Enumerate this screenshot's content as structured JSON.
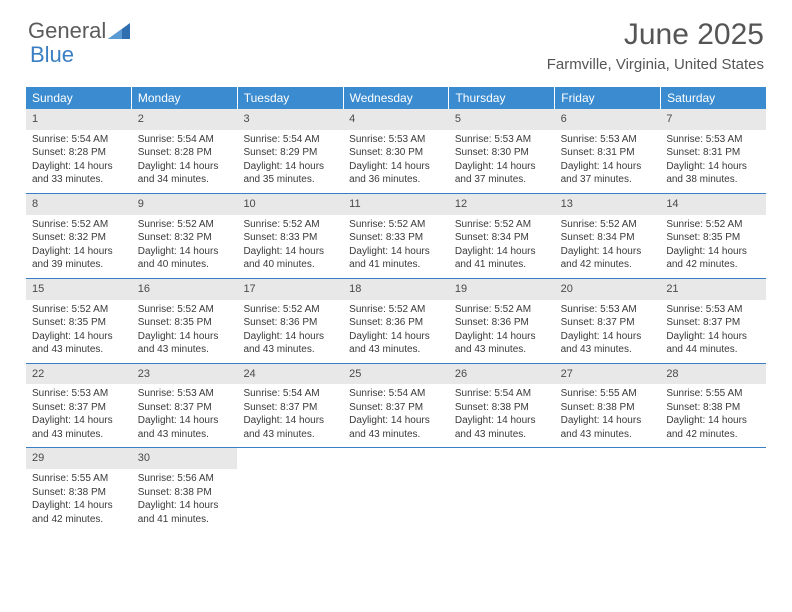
{
  "logo": {
    "text1": "General",
    "text2": "Blue"
  },
  "title": "June 2025",
  "location": "Farmville, Virginia, United States",
  "colors": {
    "header_bar": "#3a8bcf",
    "accent": "#3a7fc4",
    "daynum_bg": "#e8e8e8",
    "text": "#333333"
  },
  "weekdays": [
    "Sunday",
    "Monday",
    "Tuesday",
    "Wednesday",
    "Thursday",
    "Friday",
    "Saturday"
  ],
  "weeks": [
    [
      {
        "n": "1",
        "sr": "5:54 AM",
        "ss": "8:28 PM",
        "dl1": "14 hours",
        "dl2": "and 33 minutes."
      },
      {
        "n": "2",
        "sr": "5:54 AM",
        "ss": "8:28 PM",
        "dl1": "14 hours",
        "dl2": "and 34 minutes."
      },
      {
        "n": "3",
        "sr": "5:54 AM",
        "ss": "8:29 PM",
        "dl1": "14 hours",
        "dl2": "and 35 minutes."
      },
      {
        "n": "4",
        "sr": "5:53 AM",
        "ss": "8:30 PM",
        "dl1": "14 hours",
        "dl2": "and 36 minutes."
      },
      {
        "n": "5",
        "sr": "5:53 AM",
        "ss": "8:30 PM",
        "dl1": "14 hours",
        "dl2": "and 37 minutes."
      },
      {
        "n": "6",
        "sr": "5:53 AM",
        "ss": "8:31 PM",
        "dl1": "14 hours",
        "dl2": "and 37 minutes."
      },
      {
        "n": "7",
        "sr": "5:53 AM",
        "ss": "8:31 PM",
        "dl1": "14 hours",
        "dl2": "and 38 minutes."
      }
    ],
    [
      {
        "n": "8",
        "sr": "5:52 AM",
        "ss": "8:32 PM",
        "dl1": "14 hours",
        "dl2": "and 39 minutes."
      },
      {
        "n": "9",
        "sr": "5:52 AM",
        "ss": "8:32 PM",
        "dl1": "14 hours",
        "dl2": "and 40 minutes."
      },
      {
        "n": "10",
        "sr": "5:52 AM",
        "ss": "8:33 PM",
        "dl1": "14 hours",
        "dl2": "and 40 minutes."
      },
      {
        "n": "11",
        "sr": "5:52 AM",
        "ss": "8:33 PM",
        "dl1": "14 hours",
        "dl2": "and 41 minutes."
      },
      {
        "n": "12",
        "sr": "5:52 AM",
        "ss": "8:34 PM",
        "dl1": "14 hours",
        "dl2": "and 41 minutes."
      },
      {
        "n": "13",
        "sr": "5:52 AM",
        "ss": "8:34 PM",
        "dl1": "14 hours",
        "dl2": "and 42 minutes."
      },
      {
        "n": "14",
        "sr": "5:52 AM",
        "ss": "8:35 PM",
        "dl1": "14 hours",
        "dl2": "and 42 minutes."
      }
    ],
    [
      {
        "n": "15",
        "sr": "5:52 AM",
        "ss": "8:35 PM",
        "dl1": "14 hours",
        "dl2": "and 43 minutes."
      },
      {
        "n": "16",
        "sr": "5:52 AM",
        "ss": "8:35 PM",
        "dl1": "14 hours",
        "dl2": "and 43 minutes."
      },
      {
        "n": "17",
        "sr": "5:52 AM",
        "ss": "8:36 PM",
        "dl1": "14 hours",
        "dl2": "and 43 minutes."
      },
      {
        "n": "18",
        "sr": "5:52 AM",
        "ss": "8:36 PM",
        "dl1": "14 hours",
        "dl2": "and 43 minutes."
      },
      {
        "n": "19",
        "sr": "5:52 AM",
        "ss": "8:36 PM",
        "dl1": "14 hours",
        "dl2": "and 43 minutes."
      },
      {
        "n": "20",
        "sr": "5:53 AM",
        "ss": "8:37 PM",
        "dl1": "14 hours",
        "dl2": "and 43 minutes."
      },
      {
        "n": "21",
        "sr": "5:53 AM",
        "ss": "8:37 PM",
        "dl1": "14 hours",
        "dl2": "and 44 minutes."
      }
    ],
    [
      {
        "n": "22",
        "sr": "5:53 AM",
        "ss": "8:37 PM",
        "dl1": "14 hours",
        "dl2": "and 43 minutes."
      },
      {
        "n": "23",
        "sr": "5:53 AM",
        "ss": "8:37 PM",
        "dl1": "14 hours",
        "dl2": "and 43 minutes."
      },
      {
        "n": "24",
        "sr": "5:54 AM",
        "ss": "8:37 PM",
        "dl1": "14 hours",
        "dl2": "and 43 minutes."
      },
      {
        "n": "25",
        "sr": "5:54 AM",
        "ss": "8:37 PM",
        "dl1": "14 hours",
        "dl2": "and 43 minutes."
      },
      {
        "n": "26",
        "sr": "5:54 AM",
        "ss": "8:38 PM",
        "dl1": "14 hours",
        "dl2": "and 43 minutes."
      },
      {
        "n": "27",
        "sr": "5:55 AM",
        "ss": "8:38 PM",
        "dl1": "14 hours",
        "dl2": "and 43 minutes."
      },
      {
        "n": "28",
        "sr": "5:55 AM",
        "ss": "8:38 PM",
        "dl1": "14 hours",
        "dl2": "and 42 minutes."
      }
    ],
    [
      {
        "n": "29",
        "sr": "5:55 AM",
        "ss": "8:38 PM",
        "dl1": "14 hours",
        "dl2": "and 42 minutes."
      },
      {
        "n": "30",
        "sr": "5:56 AM",
        "ss": "8:38 PM",
        "dl1": "14 hours",
        "dl2": "and 41 minutes."
      },
      {
        "empty": true
      },
      {
        "empty": true
      },
      {
        "empty": true
      },
      {
        "empty": true
      },
      {
        "empty": true
      }
    ]
  ],
  "labels": {
    "sunrise": "Sunrise: ",
    "sunset": "Sunset: ",
    "daylight": "Daylight: "
  }
}
